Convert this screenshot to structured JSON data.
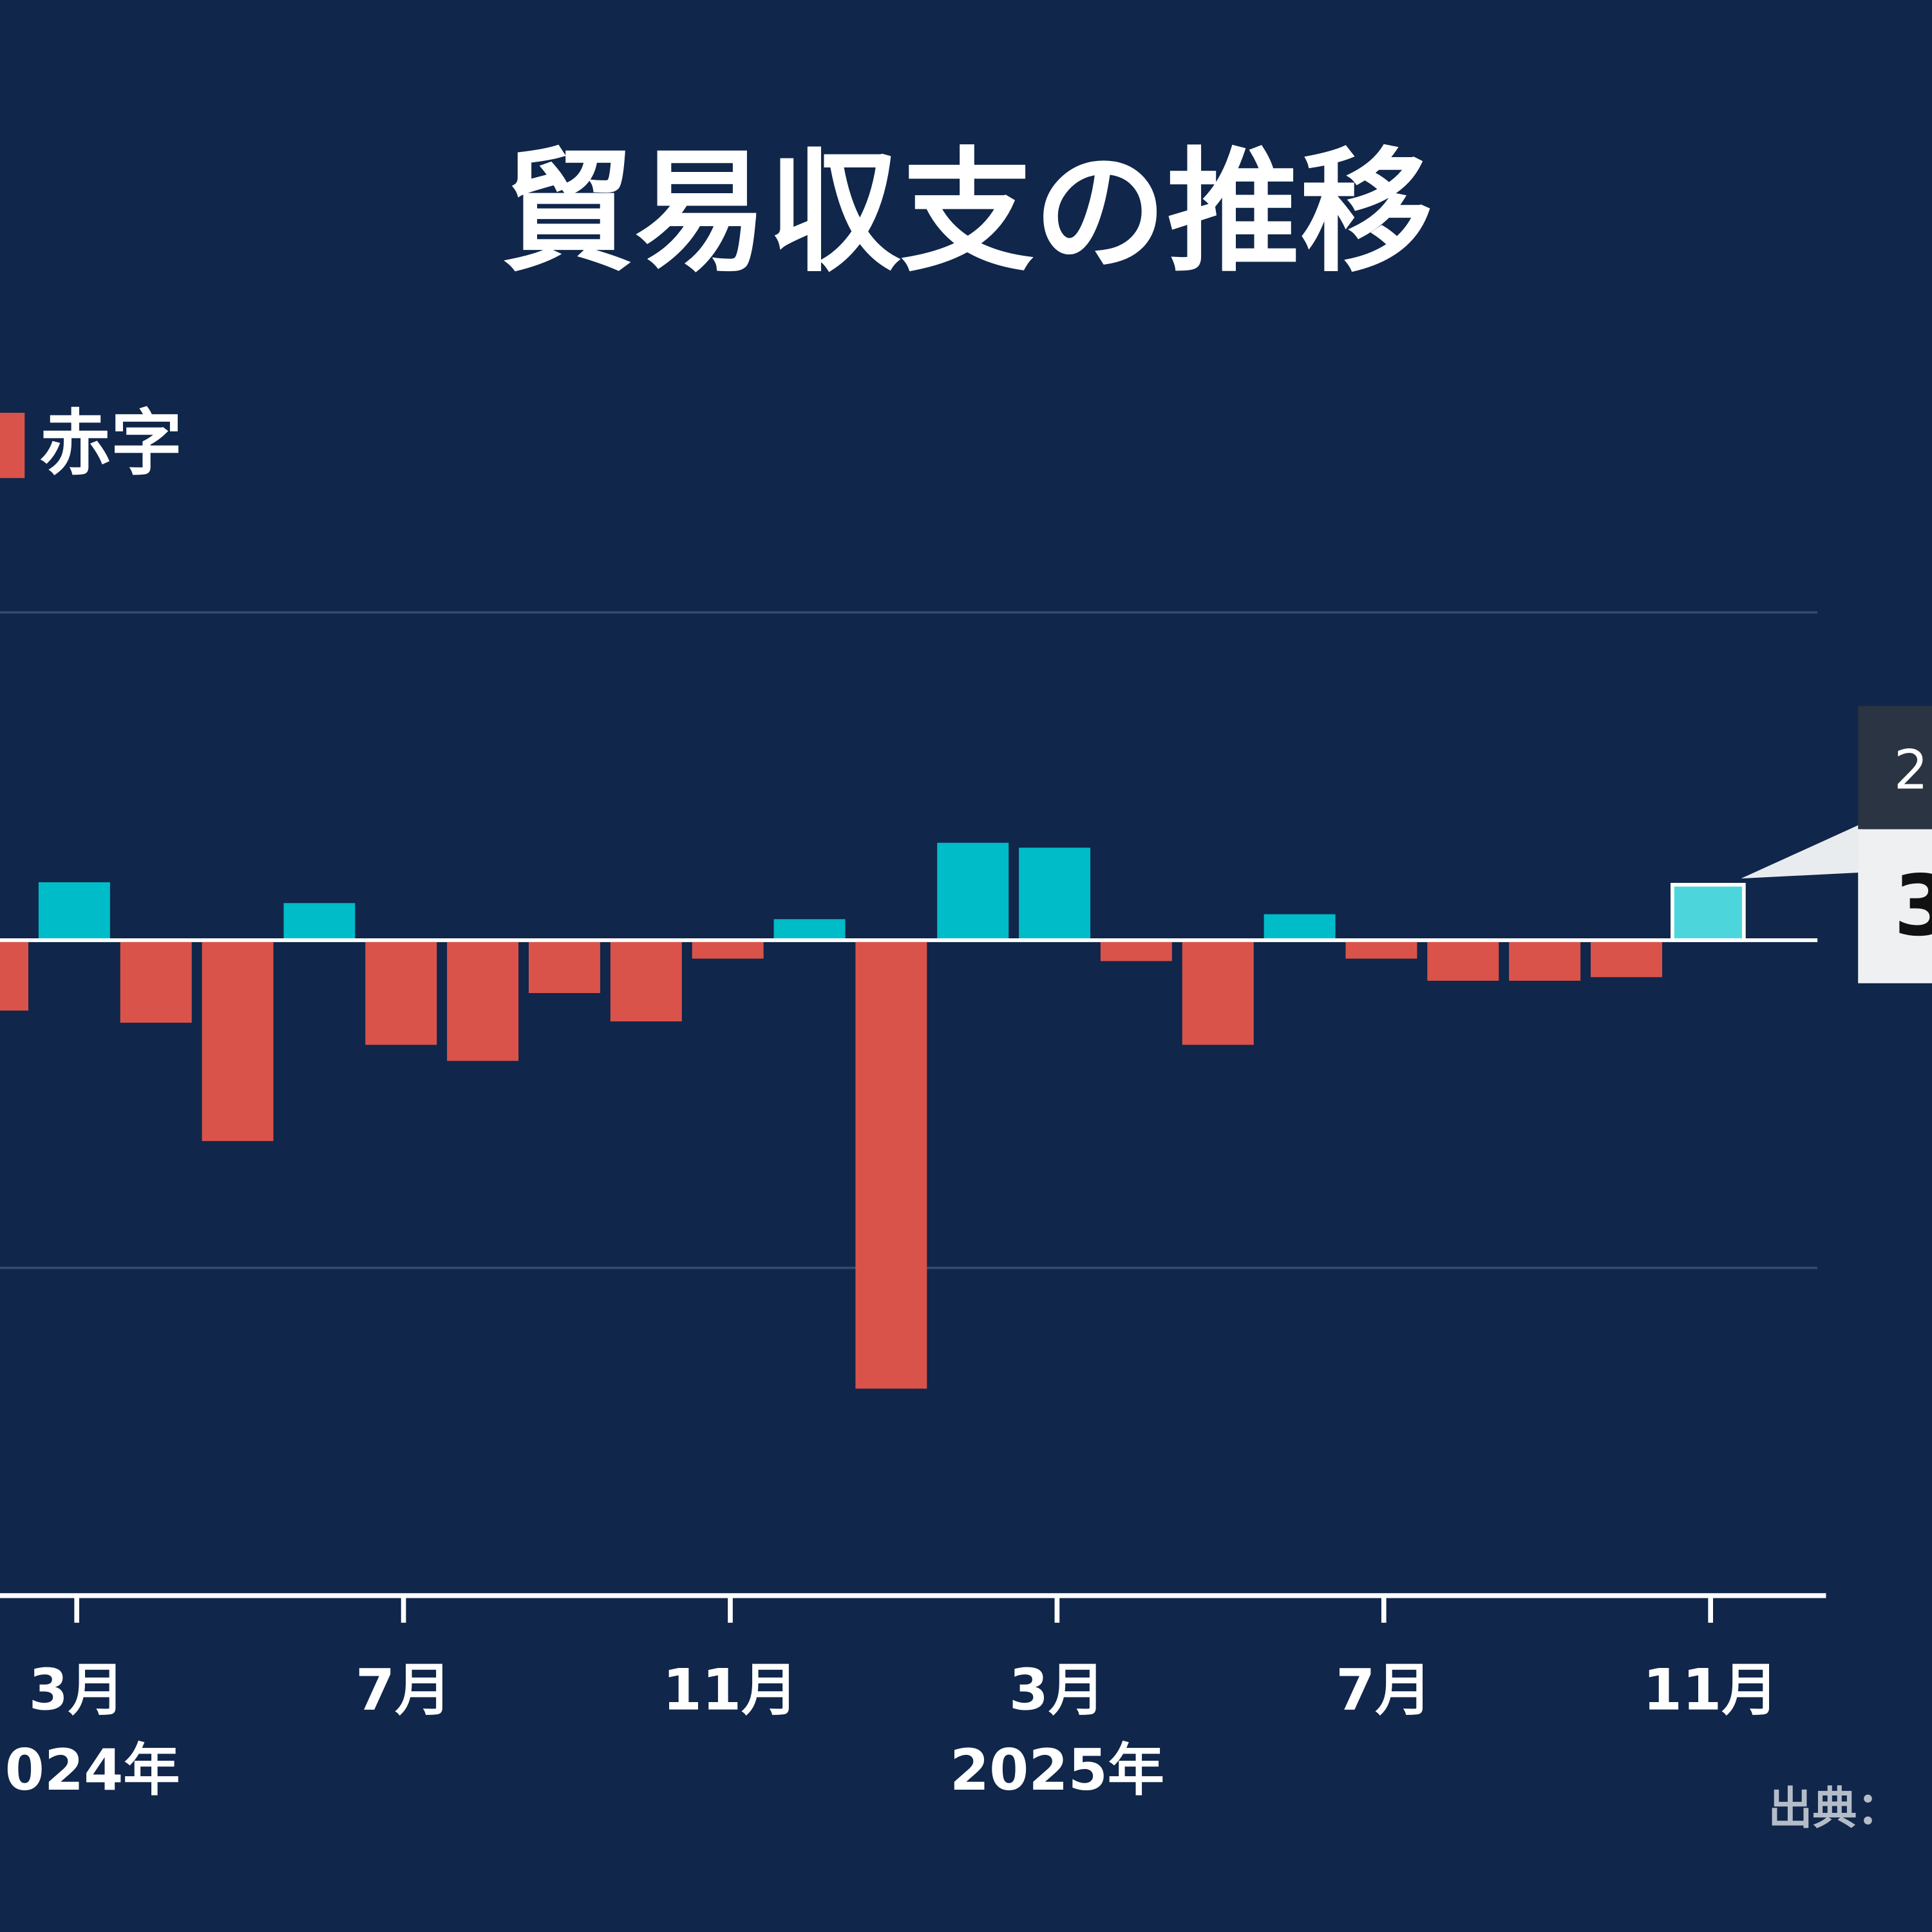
{
  "chart_data": {
    "type": "bar",
    "title": "貿易収支の推移",
    "legend": {
      "label": "赤字",
      "color": "#d9534a"
    },
    "categories": [
      null,
      "3月",
      null,
      null,
      null,
      "7月",
      null,
      null,
      null,
      "11月",
      null,
      null,
      null,
      "3月",
      null,
      null,
      null,
      "7月",
      null,
      null,
      null,
      "11月"
    ],
    "year_labels": [
      "024年",
      "2025年"
    ],
    "values": [
      -4300,
      3530,
      -5040,
      -12260,
      2260,
      -6390,
      -7370,
      -3230,
      -4960,
      -1130,
      1280,
      -27370,
      5940,
      5640,
      -1280,
      -6390,
      1580,
      -1130,
      -2480,
      -2480,
      -2260,
      3380
    ],
    "positive_color": "#00bcc8",
    "negative_color": "#d9534a",
    "highlight_color": "#4dd5dc",
    "ylim": [
      -40000,
      40000
    ],
    "yticks": [
      -20000,
      0,
      20000
    ],
    "grid": true,
    "tooltip": {
      "title": "2",
      "value": "3"
    },
    "source": "出典："
  }
}
